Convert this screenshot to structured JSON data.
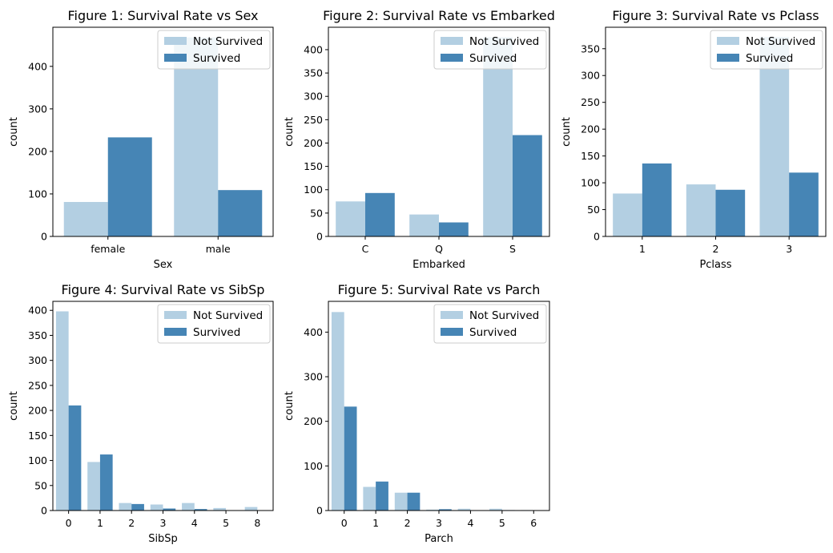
{
  "colors": {
    "not_survived": "#b3cfe2",
    "survived": "#4685b5"
  },
  "chart_data": [
    {
      "type": "bar",
      "title": "Figure 1: Survival Rate vs Sex",
      "xlabel": "Sex",
      "ylabel": "count",
      "categories": [
        "female",
        "male"
      ],
      "ylim": [
        0,
        492
      ],
      "yticks": [
        0,
        100,
        200,
        300,
        400
      ],
      "legend": "top-right",
      "grid": false,
      "series": [
        {
          "name": "Not Survived",
          "values": [
            81,
            468
          ]
        },
        {
          "name": "Survived",
          "values": [
            233,
            109
          ]
        }
      ]
    },
    {
      "type": "bar",
      "title": "Figure 2: Survival Rate vs Embarked",
      "xlabel": "Embarked",
      "ylabel": "count",
      "categories": [
        "C",
        "Q",
        "S"
      ],
      "ylim": [
        0,
        448
      ],
      "yticks": [
        0,
        50,
        100,
        150,
        200,
        250,
        300,
        350,
        400
      ],
      "legend": "top-right",
      "grid": false,
      "series": [
        {
          "name": "Not Survived",
          "values": [
            75,
            47,
            427
          ]
        },
        {
          "name": "Survived",
          "values": [
            93,
            30,
            217
          ]
        }
      ]
    },
    {
      "type": "bar",
      "title": "Figure 3: Survival Rate vs Pclass",
      "xlabel": "Pclass",
      "ylabel": "count",
      "categories": [
        "1",
        "2",
        "3"
      ],
      "ylim": [
        0,
        390
      ],
      "yticks": [
        0,
        50,
        100,
        150,
        200,
        250,
        300,
        350
      ],
      "legend": "top-right",
      "grid": false,
      "series": [
        {
          "name": "Not Survived",
          "values": [
            80,
            97,
            372
          ]
        },
        {
          "name": "Survived",
          "values": [
            136,
            87,
            119
          ]
        }
      ]
    },
    {
      "type": "bar",
      "title": "Figure 4: Survival Rate vs SibSp",
      "xlabel": "SibSp",
      "ylabel": "count",
      "categories": [
        "0",
        "1",
        "2",
        "3",
        "4",
        "5",
        "8"
      ],
      "ylim": [
        0,
        418
      ],
      "yticks": [
        0,
        50,
        100,
        150,
        200,
        250,
        300,
        350,
        400
      ],
      "legend": "top-right",
      "grid": false,
      "series": [
        {
          "name": "Not Survived",
          "values": [
            398,
            97,
            15,
            12,
            15,
            5,
            7
          ]
        },
        {
          "name": "Survived",
          "values": [
            210,
            112,
            13,
            4,
            3,
            0,
            0
          ]
        }
      ]
    },
    {
      "type": "bar",
      "title": "Figure 5: Survival Rate vs Parch",
      "xlabel": "Parch",
      "ylabel": "count",
      "categories": [
        "0",
        "1",
        "2",
        "3",
        "4",
        "5",
        "6"
      ],
      "ylim": [
        0,
        469
      ],
      "yticks": [
        0,
        100,
        200,
        300,
        400
      ],
      "legend": "top-right",
      "grid": false,
      "series": [
        {
          "name": "Not Survived",
          "values": [
            445,
            53,
            40,
            2,
            4,
            4,
            1
          ]
        },
        {
          "name": "Survived",
          "values": [
            233,
            65,
            40,
            3,
            0,
            1,
            0
          ]
        }
      ]
    }
  ]
}
